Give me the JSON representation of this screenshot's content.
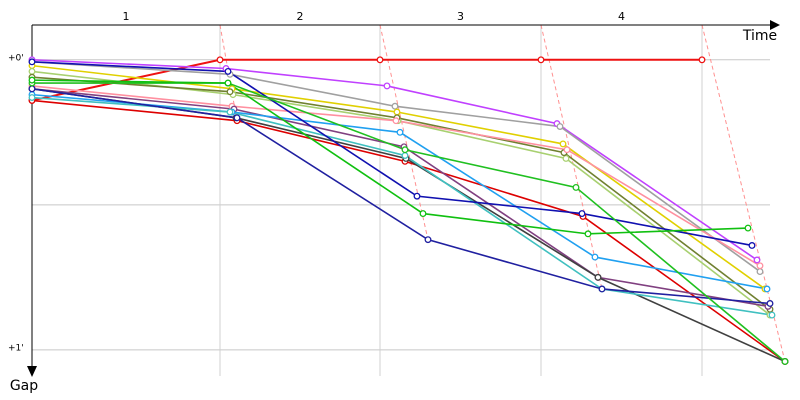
{
  "chart_data": {
    "type": "line",
    "x_label": "Time",
    "y_label": "Gap",
    "categories": [
      "1",
      "2",
      "3",
      "4"
    ],
    "xlim": [
      0,
      760
    ],
    "ylim": [
      -0.12,
      1.09
    ],
    "yticks": [
      {
        "value": 0,
        "label": "+0'"
      },
      {
        "value": 1,
        "label": "+1'"
      }
    ],
    "ygrid": [
      0,
      0.5,
      1
    ],
    "grid": true,
    "series": [
      {
        "color": "#ee1111",
        "x": [
          0,
          188,
          348,
          509,
          670
        ],
        "values": [
          0.14,
          0,
          0,
          0,
          0
        ]
      },
      {
        "color": "#dd0000",
        "x": [
          0,
          205,
          373,
          551,
          753
        ],
        "values": [
          0.14,
          0.21,
          0.35,
          0.54,
          1.04
        ]
      },
      {
        "color": "#c040ff",
        "x": [
          0,
          194,
          355,
          525,
          725
        ],
        "values": [
          0,
          0.03,
          0.09,
          0.22,
          0.69
        ]
      },
      {
        "color": "#a0a0a0",
        "x": [
          0,
          198,
          363,
          528,
          728
        ],
        "values": [
          0.007,
          0.05,
          0.16,
          0.23,
          0.73
        ]
      },
      {
        "color": "#e0d000",
        "x": [
          0,
          200,
          365,
          531,
          733
        ],
        "values": [
          0.02,
          0.1,
          0.18,
          0.29,
          0.79
        ]
      },
      {
        "color": "#a8d070",
        "x": [
          0,
          201,
          366,
          534,
          738
        ],
        "values": [
          0.04,
          0.12,
          0.21,
          0.34,
          0.88
        ]
      },
      {
        "color": "#708030",
        "x": [
          0,
          198,
          365,
          532,
          738
        ],
        "values": [
          0.06,
          0.11,
          0.2,
          0.32,
          0.86
        ]
      },
      {
        "color": "#ff90a0",
        "x": [
          0,
          200,
          364,
          535,
          728
        ],
        "values": [
          0.09,
          0.16,
          0.21,
          0.31,
          0.71
        ]
      },
      {
        "color": "#804080",
        "x": [
          0,
          202,
          372,
          566,
          736
        ],
        "values": [
          0.1,
          0.17,
          0.3,
          0.75,
          0.85
        ]
      },
      {
        "color": "#404040",
        "x": [
          0,
          204,
          374,
          566,
          753
        ],
        "values": [
          0.1,
          0.2,
          0.34,
          0.75,
          1.04
        ]
      },
      {
        "color": "#20a0f0",
        "x": [
          0,
          200,
          368,
          563,
          735
        ],
        "values": [
          0.12,
          0.18,
          0.25,
          0.68,
          0.79
        ]
      },
      {
        "color": "#40c0c0",
        "x": [
          0,
          198,
          373,
          570,
          740
        ],
        "values": [
          0.13,
          0.18,
          0.33,
          0.79,
          0.88
        ]
      },
      {
        "color": "#1010b0",
        "x": [
          0,
          196,
          385,
          550,
          720
        ],
        "values": [
          0.007,
          0.04,
          0.47,
          0.53,
          0.64
        ]
      },
      {
        "color": "#2020a0",
        "x": [
          0,
          205,
          396,
          570,
          738
        ],
        "values": [
          0.1,
          0.2,
          0.62,
          0.79,
          0.84
        ]
      },
      {
        "color": "#20c020",
        "x": [
          0,
          196,
          373,
          544,
          753
        ],
        "values": [
          0.08,
          0.08,
          0.31,
          0.44,
          1.04
        ]
      },
      {
        "color": "#10c010",
        "x": [
          0,
          196,
          391,
          556,
          716
        ],
        "values": [
          0.07,
          0.08,
          0.53,
          0.6,
          0.58
        ]
      }
    ]
  }
}
